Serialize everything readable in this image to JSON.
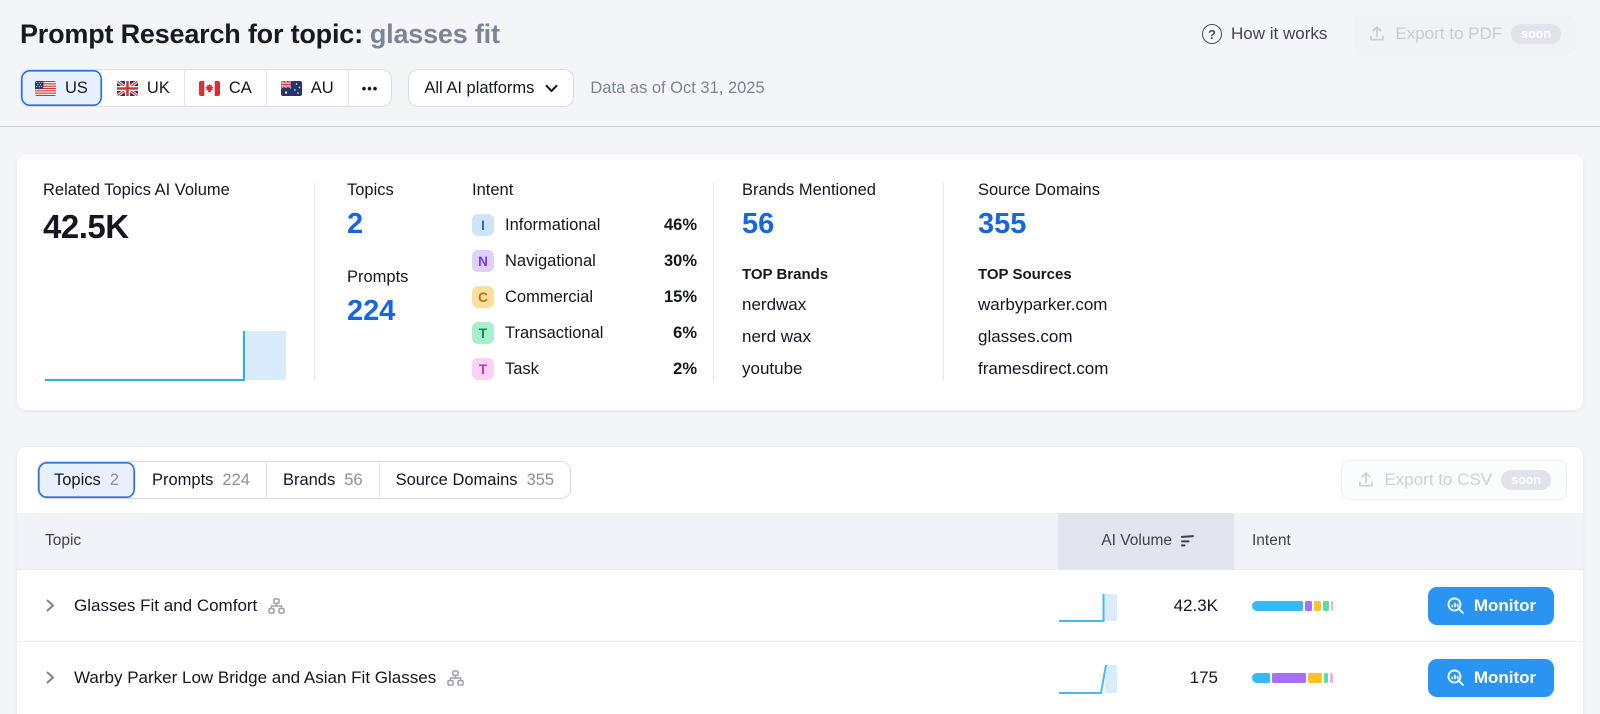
{
  "header": {
    "title_prefix": "Prompt Research for topic:",
    "topic": "glasses fit",
    "how_it_works": "How it works",
    "export_pdf_label": "Export to PDF",
    "export_pdf_badge": "soon",
    "regions": [
      {
        "code": "US",
        "selected": true
      },
      {
        "code": "UK",
        "selected": false
      },
      {
        "code": "CA",
        "selected": false
      },
      {
        "code": "AU",
        "selected": false
      }
    ],
    "more_regions": "•••",
    "platform_filter": "All AI platforms",
    "data_as_of": "Data as of Oct 31, 2025"
  },
  "summary": {
    "volume": {
      "label": "Related Topics AI Volume",
      "value": "42.5K"
    },
    "topics": {
      "label": "Topics",
      "value": "2"
    },
    "prompts": {
      "label": "Prompts",
      "value": "224"
    },
    "intent": {
      "label": "Intent",
      "items": [
        {
          "key": "I",
          "label": "Informational",
          "pct": "46%",
          "intent": "informational"
        },
        {
          "key": "N",
          "label": "Navigational",
          "pct": "30%",
          "intent": "navigational"
        },
        {
          "key": "C",
          "label": "Commercial",
          "pct": "15%",
          "intent": "commercial"
        },
        {
          "key": "T",
          "label": "Transactional",
          "pct": "6%",
          "intent": "transactional"
        },
        {
          "key": "T",
          "label": "Task",
          "pct": "2%",
          "intent": "task"
        }
      ]
    },
    "brands": {
      "label": "Brands Mentioned",
      "value": "56",
      "top_label": "TOP Brands",
      "items": [
        "nerdwax",
        "nerd wax",
        "youtube"
      ]
    },
    "sources": {
      "label": "Source Domains",
      "value": "355",
      "top_label": "TOP Sources",
      "items": [
        "warbyparker.com",
        "glasses.com",
        "framesdirect.com"
      ]
    }
  },
  "tabs": [
    {
      "label": "Topics",
      "count": "2",
      "selected": true
    },
    {
      "label": "Prompts",
      "count": "224",
      "selected": false
    },
    {
      "label": "Brands",
      "count": "56",
      "selected": false
    },
    {
      "label": "Source Domains",
      "count": "355",
      "selected": false
    }
  ],
  "export_csv": {
    "label": "Export to CSV",
    "badge": "soon"
  },
  "table": {
    "columns": {
      "topic": "Topic",
      "ai_volume": "AI Volume",
      "intent": "Intent"
    },
    "rows": [
      {
        "topic": "Glasses Fit and Comfort",
        "ai_volume": "42.3K",
        "monitor_label": "Monitor",
        "intent_bar": [
          {
            "intent": "informational",
            "pct": 66
          },
          {
            "intent": "navigational",
            "pct": 9
          },
          {
            "intent": "commercial",
            "pct": 10
          },
          {
            "intent": "transactional",
            "pct": 7
          },
          {
            "intent": "task",
            "pct": 3
          }
        ]
      },
      {
        "topic": "Warby Parker Low Bridge and Asian Fit Glasses",
        "ai_volume": "175",
        "monitor_label": "Monitor",
        "intent_bar": [
          {
            "intent": "informational",
            "pct": 22
          },
          {
            "intent": "navigational",
            "pct": 41
          },
          {
            "intent": "commercial",
            "pct": 17
          },
          {
            "intent": "transactional",
            "pct": 5
          },
          {
            "intent": "task",
            "pct": 4
          }
        ]
      }
    ]
  },
  "colors": {
    "accent_blue": "#1567df",
    "selected_border": "#2c6fe0",
    "monitor_button": "#2994f2",
    "sparkline_stroke": "#29b0f2",
    "sparkline_fill": "#d8ecfc",
    "intent": {
      "informational": {
        "fg": "#1a6fd4",
        "bg": "#cde4fb",
        "bar": "#35baf8"
      },
      "navigational": {
        "fg": "#7a3bdc",
        "bg": "#decffb",
        "bar": "#a770fa"
      },
      "commercial": {
        "fg": "#b0741a",
        "bg": "#fbdf9b",
        "bar": "#fcc032"
      },
      "transactional": {
        "fg": "#13894f",
        "bg": "#aaefcd",
        "bar": "#53e0a8"
      },
      "task": {
        "fg": "#c032b8",
        "bg": "#fbd2f4",
        "bar": "#f7a8f0"
      }
    }
  }
}
